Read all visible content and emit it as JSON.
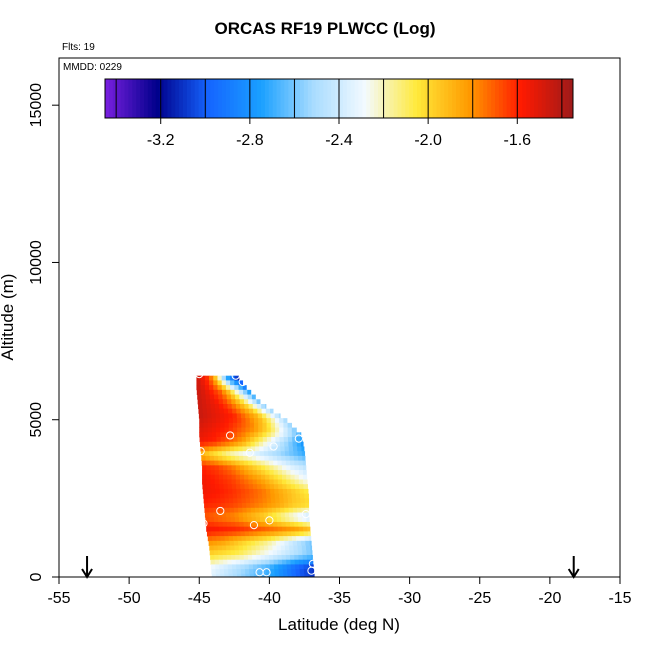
{
  "chart_data": {
    "type": "heatmap",
    "title": "ORCAS RF19 PLWCC (Log)",
    "flight_count_text": "Flts: 19",
    "date_text": "MMDD: 0229",
    "xlabel": "Latitude (deg N)",
    "ylabel": "Altitude (m)",
    "xlim": [
      -55,
      -15
    ],
    "ylim": [
      0,
      16500
    ],
    "xticks": [
      -55,
      -50,
      -45,
      -40,
      -35,
      -30,
      -25,
      -20,
      -15
    ],
    "yticks": [
      0,
      5000,
      10000,
      15000
    ],
    "colorbar": {
      "range": [
        -3.45,
        -1.35
      ],
      "ticks": [
        -3.2,
        -2.8,
        -2.4,
        -2.0,
        -1.6
      ],
      "tick_labels": [
        "-3.2",
        "-2.8",
        "-2.4",
        "-2.0",
        "-1.6"
      ],
      "colors": [
        "#7a1fe0",
        "#00008b",
        "#1565ff",
        "#1aa0ff",
        "#a8dcff",
        "#f3faff",
        "#ffe93a",
        "#ff9a00",
        "#ff1a00",
        "#9e1a1a"
      ]
    },
    "arrows_latitude": [
      -53.0,
      -18.3
    ],
    "cloud_profile": [
      {
        "alt": 6400,
        "lat_min": -45.2,
        "lat_max": -42.3
      },
      {
        "alt": 6000,
        "lat_min": -45.2,
        "lat_max": -41.6
      },
      {
        "alt": 5500,
        "lat_min": -45.1,
        "lat_max": -40.5
      },
      {
        "alt": 5000,
        "lat_min": -45.0,
        "lat_max": -38.8
      },
      {
        "alt": 4500,
        "lat_min": -45.0,
        "lat_max": -37.7
      },
      {
        "alt": 4000,
        "lat_min": -44.9,
        "lat_max": -37.5
      },
      {
        "alt": 3500,
        "lat_min": -44.8,
        "lat_max": -37.4
      },
      {
        "alt": 3000,
        "lat_min": -44.8,
        "lat_max": -37.3
      },
      {
        "alt": 2500,
        "lat_min": -44.7,
        "lat_max": -37.2
      },
      {
        "alt": 2000,
        "lat_min": -44.6,
        "lat_max": -37.2
      },
      {
        "alt": 1500,
        "lat_min": -44.5,
        "lat_max": -37.1
      },
      {
        "alt": 1000,
        "lat_min": -44.3,
        "lat_max": -37.0
      },
      {
        "alt": 500,
        "lat_min": -44.2,
        "lat_max": -36.9
      },
      {
        "alt": 0,
        "lat_min": -44.1,
        "lat_max": -36.8
      }
    ],
    "value_rows": [
      {
        "alt": 6300,
        "values": [
          -1.45,
          -1.55,
          -1.65,
          -1.9,
          -2.3,
          -2.7,
          -2.9,
          -3.2
        ]
      },
      {
        "alt": 5900,
        "values": [
          -1.45,
          -1.5,
          -1.6,
          -1.7,
          -1.9,
          -2.2,
          -2.5,
          -2.8
        ]
      },
      {
        "alt": 5500,
        "values": [
          -1.45,
          -1.5,
          -1.55,
          -1.65,
          -1.8,
          -2.0,
          -2.3,
          -2.6
        ]
      },
      {
        "alt": 5100,
        "values": [
          -1.45,
          -1.5,
          -1.55,
          -1.6,
          -1.75,
          -1.9,
          -2.2,
          -2.5
        ]
      },
      {
        "alt": 4700,
        "values": [
          -1.5,
          -1.55,
          -1.6,
          -1.7,
          -1.8,
          -2.0,
          -2.3,
          -2.6
        ]
      },
      {
        "alt": 4300,
        "values": [
          -1.55,
          -1.6,
          -1.7,
          -1.85,
          -2.1,
          -2.35,
          -2.55,
          -2.8
        ]
      },
      {
        "alt": 3900,
        "values": [
          -1.9,
          -2.05,
          -2.2,
          -2.3,
          -2.4,
          -2.5,
          -2.6,
          -2.7
        ]
      },
      {
        "alt": 3500,
        "values": [
          -1.6,
          -1.65,
          -1.75,
          -1.9,
          -2.05,
          -2.2,
          -2.35,
          -2.45
        ]
      },
      {
        "alt": 3100,
        "values": [
          -1.55,
          -1.6,
          -1.65,
          -1.75,
          -1.85,
          -2.0,
          -2.15,
          -2.3
        ]
      },
      {
        "alt": 2700,
        "values": [
          -1.55,
          -1.58,
          -1.62,
          -1.68,
          -1.75,
          -1.85,
          -1.95,
          -2.05
        ]
      },
      {
        "alt": 2300,
        "values": [
          -1.6,
          -1.62,
          -1.66,
          -1.72,
          -1.78,
          -1.85,
          -1.95,
          -2.0
        ]
      },
      {
        "alt": 1900,
        "values": [
          -1.7,
          -1.75,
          -1.8,
          -1.9,
          -2.0,
          -2.15,
          -2.3,
          -2.45
        ]
      },
      {
        "alt": 1500,
        "values": [
          -1.55,
          -1.58,
          -1.6,
          -1.65,
          -1.7,
          -1.75,
          -1.8,
          -1.9
        ]
      },
      {
        "alt": 1100,
        "values": [
          -1.8,
          -1.85,
          -1.95,
          -2.05,
          -2.15,
          -2.3,
          -2.45,
          -2.6
        ]
      },
      {
        "alt": 700,
        "values": [
          -2.0,
          -2.05,
          -2.1,
          -2.2,
          -2.3,
          -2.4,
          -2.5,
          -2.6
        ]
      },
      {
        "alt": 300,
        "values": [
          -2.3,
          -2.4,
          -2.5,
          -2.6,
          -2.7,
          -2.85,
          -3.0,
          -3.1
        ]
      }
    ],
    "sample_points": [
      {
        "lat": -45.0,
        "alt": 6450
      },
      {
        "lat": -42.4,
        "alt": 6400
      },
      {
        "lat": -41.9,
        "alt": 6200
      },
      {
        "lat": -42.8,
        "alt": 4500
      },
      {
        "lat": -37.9,
        "alt": 4400
      },
      {
        "lat": -44.9,
        "alt": 4000
      },
      {
        "lat": -41.4,
        "alt": 3950
      },
      {
        "lat": -39.7,
        "alt": 4150
      },
      {
        "lat": -43.5,
        "alt": 2100
      },
      {
        "lat": -37.4,
        "alt": 2000
      },
      {
        "lat": -44.7,
        "alt": 1700
      },
      {
        "lat": -40.0,
        "alt": 1800
      },
      {
        "lat": -41.1,
        "alt": 1650
      },
      {
        "lat": -40.7,
        "alt": 150
      },
      {
        "lat": -40.2,
        "alt": 150
      },
      {
        "lat": -37.0,
        "alt": 200
      },
      {
        "lat": -36.9,
        "alt": 420
      }
    ]
  }
}
